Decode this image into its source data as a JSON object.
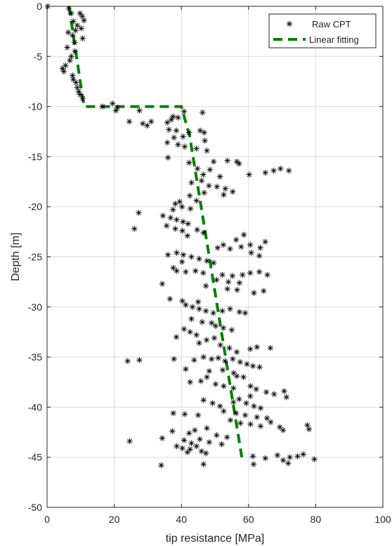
{
  "chart_data": {
    "type": "scatter",
    "xlabel": "tip resistance [MPa]",
    "ylabel": "Depth [m]",
    "xlim": [
      0,
      100
    ],
    "ylim": [
      -50,
      0
    ],
    "xticks": [
      "0",
      "20",
      "40",
      "60",
      "80",
      "100"
    ],
    "yticks": [
      "0",
      "-5",
      "-10",
      "-15",
      "-20",
      "-25",
      "-30",
      "-35",
      "-40",
      "-45",
      "-50"
    ],
    "grid": true,
    "legend_position": "top-right",
    "colors": {
      "raw": "#000000",
      "fit": "#008000",
      "grid": "#dcdcdc",
      "axis": "#262626"
    },
    "series": [
      {
        "name": "Raw CPT",
        "type": "scatter",
        "marker": "asterisk",
        "points": [
          [
            0.2,
            0
          ],
          [
            6.5,
            -0.2
          ],
          [
            7.2,
            -0.7
          ],
          [
            9.8,
            -0.7
          ],
          [
            10.5,
            -1.0
          ],
          [
            11.0,
            -1.4
          ],
          [
            7.8,
            -1.5
          ],
          [
            9.0,
            -1.9
          ],
          [
            10.2,
            -2.2
          ],
          [
            8.5,
            -2.4
          ],
          [
            6.3,
            -2.6
          ],
          [
            7.6,
            -2.9
          ],
          [
            10.6,
            -3.2
          ],
          [
            8.2,
            -3.6
          ],
          [
            6.0,
            -4.1
          ],
          [
            8.3,
            -4.5
          ],
          [
            7.2,
            -5.0
          ],
          [
            6.8,
            -5.4
          ],
          [
            5.5,
            -5.9
          ],
          [
            4.6,
            -6.2
          ],
          [
            5.0,
            -6.5
          ],
          [
            7.6,
            -6.9
          ],
          [
            7.8,
            -7.3
          ],
          [
            8.6,
            -7.6
          ],
          [
            9.0,
            -8.1
          ],
          [
            9.4,
            -8.5
          ],
          [
            9.8,
            -8.8
          ],
          [
            10.6,
            -9.2
          ],
          [
            16.5,
            -10.0
          ],
          [
            19.5,
            -9.7
          ],
          [
            21.0,
            -10.1
          ],
          [
            20.5,
            -10.4
          ],
          [
            27.5,
            -10.4
          ],
          [
            24.5,
            -11.5
          ],
          [
            28.5,
            -11.7
          ],
          [
            29.8,
            -11.9
          ],
          [
            31.0,
            -11.5
          ],
          [
            37.5,
            -11.0
          ],
          [
            39.0,
            -11.1
          ],
          [
            40.8,
            -10.5
          ],
          [
            46.3,
            -10.6
          ],
          [
            37.0,
            -11.3
          ],
          [
            35.8,
            -11.6
          ],
          [
            36.3,
            -12.3
          ],
          [
            38.5,
            -12.4
          ],
          [
            42.3,
            -12.6
          ],
          [
            45.6,
            -12.4
          ],
          [
            46.8,
            -12.6
          ],
          [
            47.0,
            -13.4
          ],
          [
            40.5,
            -13.0
          ],
          [
            37.8,
            -13.1
          ],
          [
            35.8,
            -13.6
          ],
          [
            39.0,
            -13.8
          ],
          [
            41.0,
            -14.0
          ],
          [
            44.5,
            -14.2
          ],
          [
            47.6,
            -14.4
          ],
          [
            36.0,
            -15.1
          ],
          [
            42.3,
            -15.6
          ],
          [
            49.6,
            -15.5
          ],
          [
            53.7,
            -15.4
          ],
          [
            56.5,
            -15.5
          ],
          [
            57.2,
            -15.7
          ],
          [
            44.8,
            -16.2
          ],
          [
            48.5,
            -16.3
          ],
          [
            46.5,
            -16.8
          ],
          [
            51.5,
            -17.0
          ],
          [
            60.2,
            -16.8
          ],
          [
            65.0,
            -16.6
          ],
          [
            67.5,
            -16.4
          ],
          [
            69.5,
            -16.2
          ],
          [
            72.0,
            -16.4
          ],
          [
            43.0,
            -17.6
          ],
          [
            46.0,
            -17.4
          ],
          [
            48.2,
            -17.9
          ],
          [
            50.6,
            -18.0
          ],
          [
            53.1,
            -18.2
          ],
          [
            55.3,
            -18.5
          ],
          [
            52.6,
            -18.8
          ],
          [
            46.8,
            -18.6
          ],
          [
            42.5,
            -18.9
          ],
          [
            44.5,
            -19.4
          ],
          [
            39.5,
            -19.5
          ],
          [
            38.2,
            -19.7
          ],
          [
            37.5,
            -20.3
          ],
          [
            40.2,
            -20.0
          ],
          [
            42.7,
            -20.2
          ],
          [
            27.3,
            -20.6
          ],
          [
            34.5,
            -20.9
          ],
          [
            36.8,
            -21.1
          ],
          [
            38.6,
            -21.3
          ],
          [
            40.5,
            -21.5
          ],
          [
            42.0,
            -21.7
          ],
          [
            35.6,
            -21.9
          ],
          [
            26.0,
            -22.2
          ],
          [
            38.2,
            -22.2
          ],
          [
            40.3,
            -22.4
          ],
          [
            44.7,
            -22.3
          ],
          [
            41.8,
            -22.9
          ],
          [
            46.6,
            -22.6
          ],
          [
            58.6,
            -22.8
          ],
          [
            56.3,
            -23.3
          ],
          [
            52.5,
            -23.8
          ],
          [
            50.8,
            -24.1
          ],
          [
            54.5,
            -24.2
          ],
          [
            57.8,
            -24.0
          ],
          [
            60.5,
            -23.8
          ],
          [
            65.0,
            -23.5
          ],
          [
            63.5,
            -24.1
          ],
          [
            60.8,
            -24.6
          ],
          [
            63.2,
            -24.9
          ],
          [
            36.0,
            -24.8
          ],
          [
            38.6,
            -24.6
          ],
          [
            40.6,
            -24.8
          ],
          [
            43.0,
            -25.0
          ],
          [
            45.3,
            -25.2
          ],
          [
            47.6,
            -25.4
          ],
          [
            49.6,
            -25.6
          ],
          [
            40.2,
            -25.5
          ],
          [
            37.6,
            -26.1
          ],
          [
            38.6,
            -26.4
          ],
          [
            41.3,
            -26.5
          ],
          [
            44.2,
            -26.4
          ],
          [
            46.5,
            -26.6
          ],
          [
            52.2,
            -26.8
          ],
          [
            55.2,
            -26.9
          ],
          [
            58.2,
            -26.8
          ],
          [
            60.5,
            -26.6
          ],
          [
            63.2,
            -26.5
          ],
          [
            65.6,
            -26.8
          ],
          [
            50.5,
            -27.3
          ],
          [
            54.0,
            -27.5
          ],
          [
            57.3,
            -27.6
          ],
          [
            34.3,
            -27.7
          ],
          [
            47.3,
            -27.9
          ],
          [
            53.7,
            -28.2
          ],
          [
            56.6,
            -28.3
          ],
          [
            61.6,
            -28.6
          ],
          [
            64.5,
            -28.4
          ],
          [
            36.6,
            -29.2
          ],
          [
            40.3,
            -29.4
          ],
          [
            45.0,
            -29.5
          ],
          [
            41.3,
            -29.8
          ],
          [
            43.3,
            -30.0
          ],
          [
            45.3,
            -30.2
          ],
          [
            47.3,
            -30.4
          ],
          [
            49.5,
            -30.6
          ],
          [
            52.2,
            -30.4
          ],
          [
            54.5,
            -30.2
          ],
          [
            57.3,
            -30.5
          ],
          [
            59.0,
            -30.6
          ],
          [
            43.0,
            -31.2
          ],
          [
            46.2,
            -31.5
          ],
          [
            49.0,
            -31.6
          ],
          [
            50.2,
            -31.9
          ],
          [
            52.5,
            -32.1
          ],
          [
            55.0,
            -32.3
          ],
          [
            40.8,
            -32.2
          ],
          [
            42.6,
            -32.5
          ],
          [
            44.5,
            -32.8
          ],
          [
            49.8,
            -33.1
          ],
          [
            47.5,
            -33.3
          ],
          [
            38.5,
            -33.0
          ],
          [
            45.3,
            -33.6
          ],
          [
            51.6,
            -33.8
          ],
          [
            54.3,
            -34.1
          ],
          [
            56.5,
            -34.5
          ],
          [
            60.5,
            -34.2
          ],
          [
            62.5,
            -34.0
          ],
          [
            66.5,
            -34.1
          ],
          [
            37.8,
            -35.2
          ],
          [
            43.8,
            -35.3
          ],
          [
            46.6,
            -35.0
          ],
          [
            49.0,
            -35.2
          ],
          [
            51.0,
            -35.1
          ],
          [
            53.0,
            -35.4
          ],
          [
            55.3,
            -35.2
          ],
          [
            57.5,
            -35.5
          ],
          [
            24.0,
            -35.4
          ],
          [
            27.5,
            -35.3
          ],
          [
            59.5,
            -35.7
          ],
          [
            61.3,
            -35.9
          ],
          [
            63.3,
            -36.0
          ],
          [
            41.3,
            -36.2
          ],
          [
            48.3,
            -36.4
          ],
          [
            52.3,
            -36.3
          ],
          [
            55.6,
            -36.6
          ],
          [
            56.5,
            -36.9
          ],
          [
            58.5,
            -37.0
          ],
          [
            47.6,
            -37.0
          ],
          [
            45.8,
            -37.4
          ],
          [
            42.6,
            -37.5
          ],
          [
            50.2,
            -37.7
          ],
          [
            52.6,
            -37.9
          ],
          [
            55.5,
            -38.1
          ],
          [
            60.6,
            -37.9
          ],
          [
            62.3,
            -38.2
          ],
          [
            65.3,
            -38.5
          ],
          [
            67.6,
            -38.7
          ],
          [
            70.6,
            -38.4
          ],
          [
            71.3,
            -39.0
          ],
          [
            60.5,
            -38.9
          ],
          [
            57.2,
            -39.2
          ],
          [
            55.5,
            -39.5
          ],
          [
            46.6,
            -39.3
          ],
          [
            49.3,
            -39.6
          ],
          [
            51.5,
            -39.9
          ],
          [
            59.3,
            -39.6
          ],
          [
            61.6,
            -39.9
          ],
          [
            63.6,
            -40.1
          ],
          [
            52.6,
            -40.4
          ],
          [
            45.0,
            -40.8
          ],
          [
            37.6,
            -40.6
          ],
          [
            41.0,
            -40.7
          ],
          [
            56.3,
            -40.6
          ],
          [
            59.0,
            -40.8
          ],
          [
            62.5,
            -41.0
          ],
          [
            65.5,
            -41.1
          ],
          [
            66.6,
            -41.5
          ],
          [
            54.6,
            -41.3
          ],
          [
            57.6,
            -41.6
          ],
          [
            60.6,
            -41.7
          ],
          [
            63.6,
            -41.9
          ],
          [
            69.3,
            -42.0
          ],
          [
            70.3,
            -42.3
          ],
          [
            77.5,
            -41.8
          ],
          [
            78.0,
            -42.2
          ],
          [
            37.3,
            -42.4
          ],
          [
            42.3,
            -42.6
          ],
          [
            44.0,
            -42.3
          ],
          [
            47.6,
            -42.1
          ],
          [
            50.5,
            -42.8
          ],
          [
            53.6,
            -43.0
          ],
          [
            45.5,
            -43.2
          ],
          [
            48.3,
            -43.5
          ],
          [
            34.3,
            -43.1
          ],
          [
            40.8,
            -43.3
          ],
          [
            43.0,
            -43.6
          ],
          [
            44.5,
            -43.9
          ],
          [
            52.0,
            -43.7
          ],
          [
            24.6,
            -43.4
          ],
          [
            38.6,
            -43.9
          ],
          [
            40.3,
            -44.1
          ],
          [
            42.6,
            -44.2
          ],
          [
            46.0,
            -44.4
          ],
          [
            47.3,
            -44.6
          ],
          [
            41.8,
            -44.5
          ],
          [
            61.3,
            -44.9
          ],
          [
            65.0,
            -45.1
          ],
          [
            68.6,
            -44.8
          ],
          [
            70.3,
            -45.3
          ],
          [
            72.3,
            -45.0
          ],
          [
            71.8,
            -45.6
          ],
          [
            74.6,
            -44.9
          ],
          [
            76.3,
            -44.7
          ],
          [
            79.6,
            -45.2
          ],
          [
            34.0,
            -45.8
          ],
          [
            46.6,
            -45.7
          ],
          [
            61.5,
            -45.7
          ]
        ]
      },
      {
        "name": "Linear fitting",
        "type": "line",
        "style": "dashed",
        "points": [
          [
            6.5,
            0
          ],
          [
            11,
            -10
          ],
          [
            40,
            -10
          ],
          [
            42.5,
            -13
          ],
          [
            58,
            -45
          ]
        ]
      }
    ]
  }
}
